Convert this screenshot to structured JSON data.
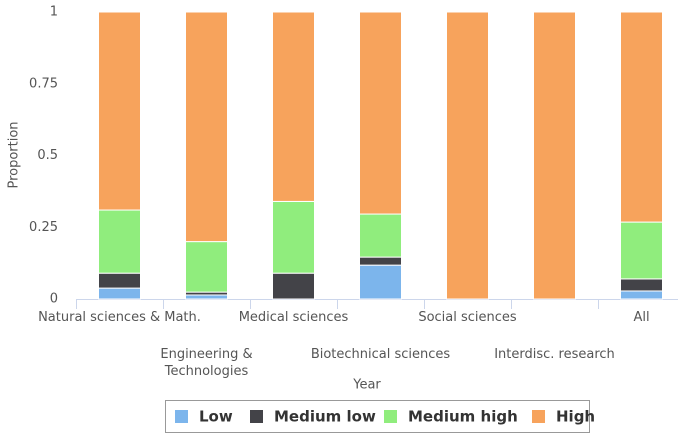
{
  "chart_data": {
    "type": "stacked_bar",
    "x_label": "Year",
    "y_label": "Proportion",
    "categories": [
      "Natural sciences & Math.",
      "Engineering & Technologies",
      "Medical sciences",
      "Biotechnical sciences",
      "Social sciences",
      "Interdisc. research",
      "All"
    ],
    "series": [
      {
        "name": "Low",
        "color": "#7cb5ec",
        "values": [
          0.038,
          0.014,
          0,
          0.118,
          0,
          0,
          0.028
        ]
      },
      {
        "name": "Medium low",
        "color": "#434348",
        "values": [
          0.052,
          0.01,
          0.09,
          0.028,
          0,
          0,
          0.042
        ]
      },
      {
        "name": "Medium high",
        "color": "#90ed7d",
        "values": [
          0.22,
          0.176,
          0.25,
          0.15,
          0,
          0,
          0.198
        ]
      },
      {
        "name": "High",
        "color": "#f7a35c",
        "values": [
          0.69,
          0.8,
          0.66,
          0.704,
          1,
          1,
          0.732
        ]
      }
    ],
    "ylim": [
      0,
      1
    ],
    "yticks": [
      0,
      0.25,
      0.5,
      0.75,
      1
    ],
    "legend": "bottom"
  }
}
